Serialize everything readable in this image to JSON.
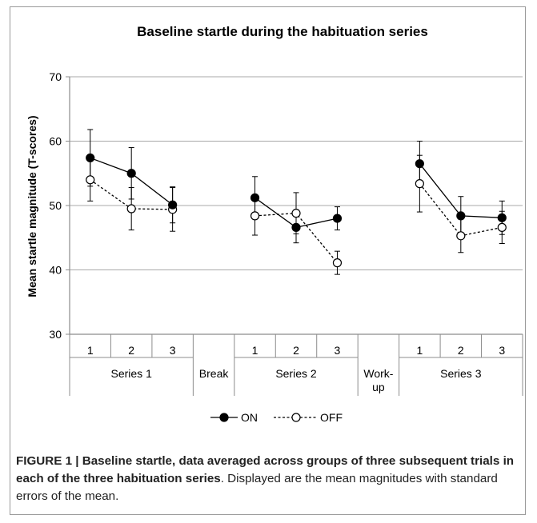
{
  "chart_data": {
    "type": "line",
    "title": "Baseline startle during the habituation series",
    "ylabel": "Mean startle magnitude (T-scores)",
    "xlabel": "",
    "ylim": [
      30,
      70
    ],
    "yticks": [
      30,
      40,
      50,
      60,
      70
    ],
    "grid": true,
    "legend_position": "bottom",
    "x_slots": [
      "1",
      "2",
      "3",
      "",
      "1",
      "2",
      "3",
      "",
      "1",
      "2",
      "3"
    ],
    "groups": [
      {
        "label": "Series 1",
        "slots": [
          0,
          1,
          2
        ]
      },
      {
        "label": "Break",
        "slots": [
          3
        ]
      },
      {
        "label": "Series 2",
        "slots": [
          4,
          5,
          6
        ]
      },
      {
        "label": "Work-\nup",
        "slots": [
          7
        ]
      },
      {
        "label": "Series 3",
        "slots": [
          8,
          9,
          10
        ]
      }
    ],
    "segments": [
      [
        0,
        1,
        2
      ],
      [
        4,
        5,
        6
      ],
      [
        8,
        9,
        10
      ]
    ],
    "series": [
      {
        "name": "ON",
        "style": "solid",
        "marker": "filled",
        "values": [
          57.4,
          55.0,
          50.1,
          null,
          51.2,
          46.6,
          48.0,
          null,
          56.5,
          48.4,
          48.1
        ],
        "errors": [
          4.4,
          4.0,
          2.8,
          null,
          3.3,
          2.4,
          1.8,
          null,
          3.5,
          3.0,
          2.6
        ]
      },
      {
        "name": "OFF",
        "style": "dashed",
        "marker": "open",
        "values": [
          54.0,
          49.5,
          49.4,
          null,
          48.4,
          48.8,
          41.1,
          null,
          53.4,
          45.3,
          46.6
        ],
        "errors": [
          3.3,
          3.3,
          3.4,
          null,
          3.0,
          3.2,
          1.8,
          null,
          4.4,
          2.6,
          2.5
        ]
      }
    ],
    "legend": [
      {
        "name": "ON",
        "display": "ON"
      },
      {
        "name": "OFF",
        "display": "OFF"
      }
    ]
  },
  "caption": {
    "lead": "FIGURE 1 | Baseline startle, data averaged across groups of three subsequent trials in each of the three habituation series",
    "rest": ". Displayed are the mean magnitudes with standard errors of the mean."
  },
  "colors": {
    "line": "#000000",
    "grid": "#a8a8a8",
    "axis": "#8c8c8c",
    "frame": "#9a9a9a"
  }
}
